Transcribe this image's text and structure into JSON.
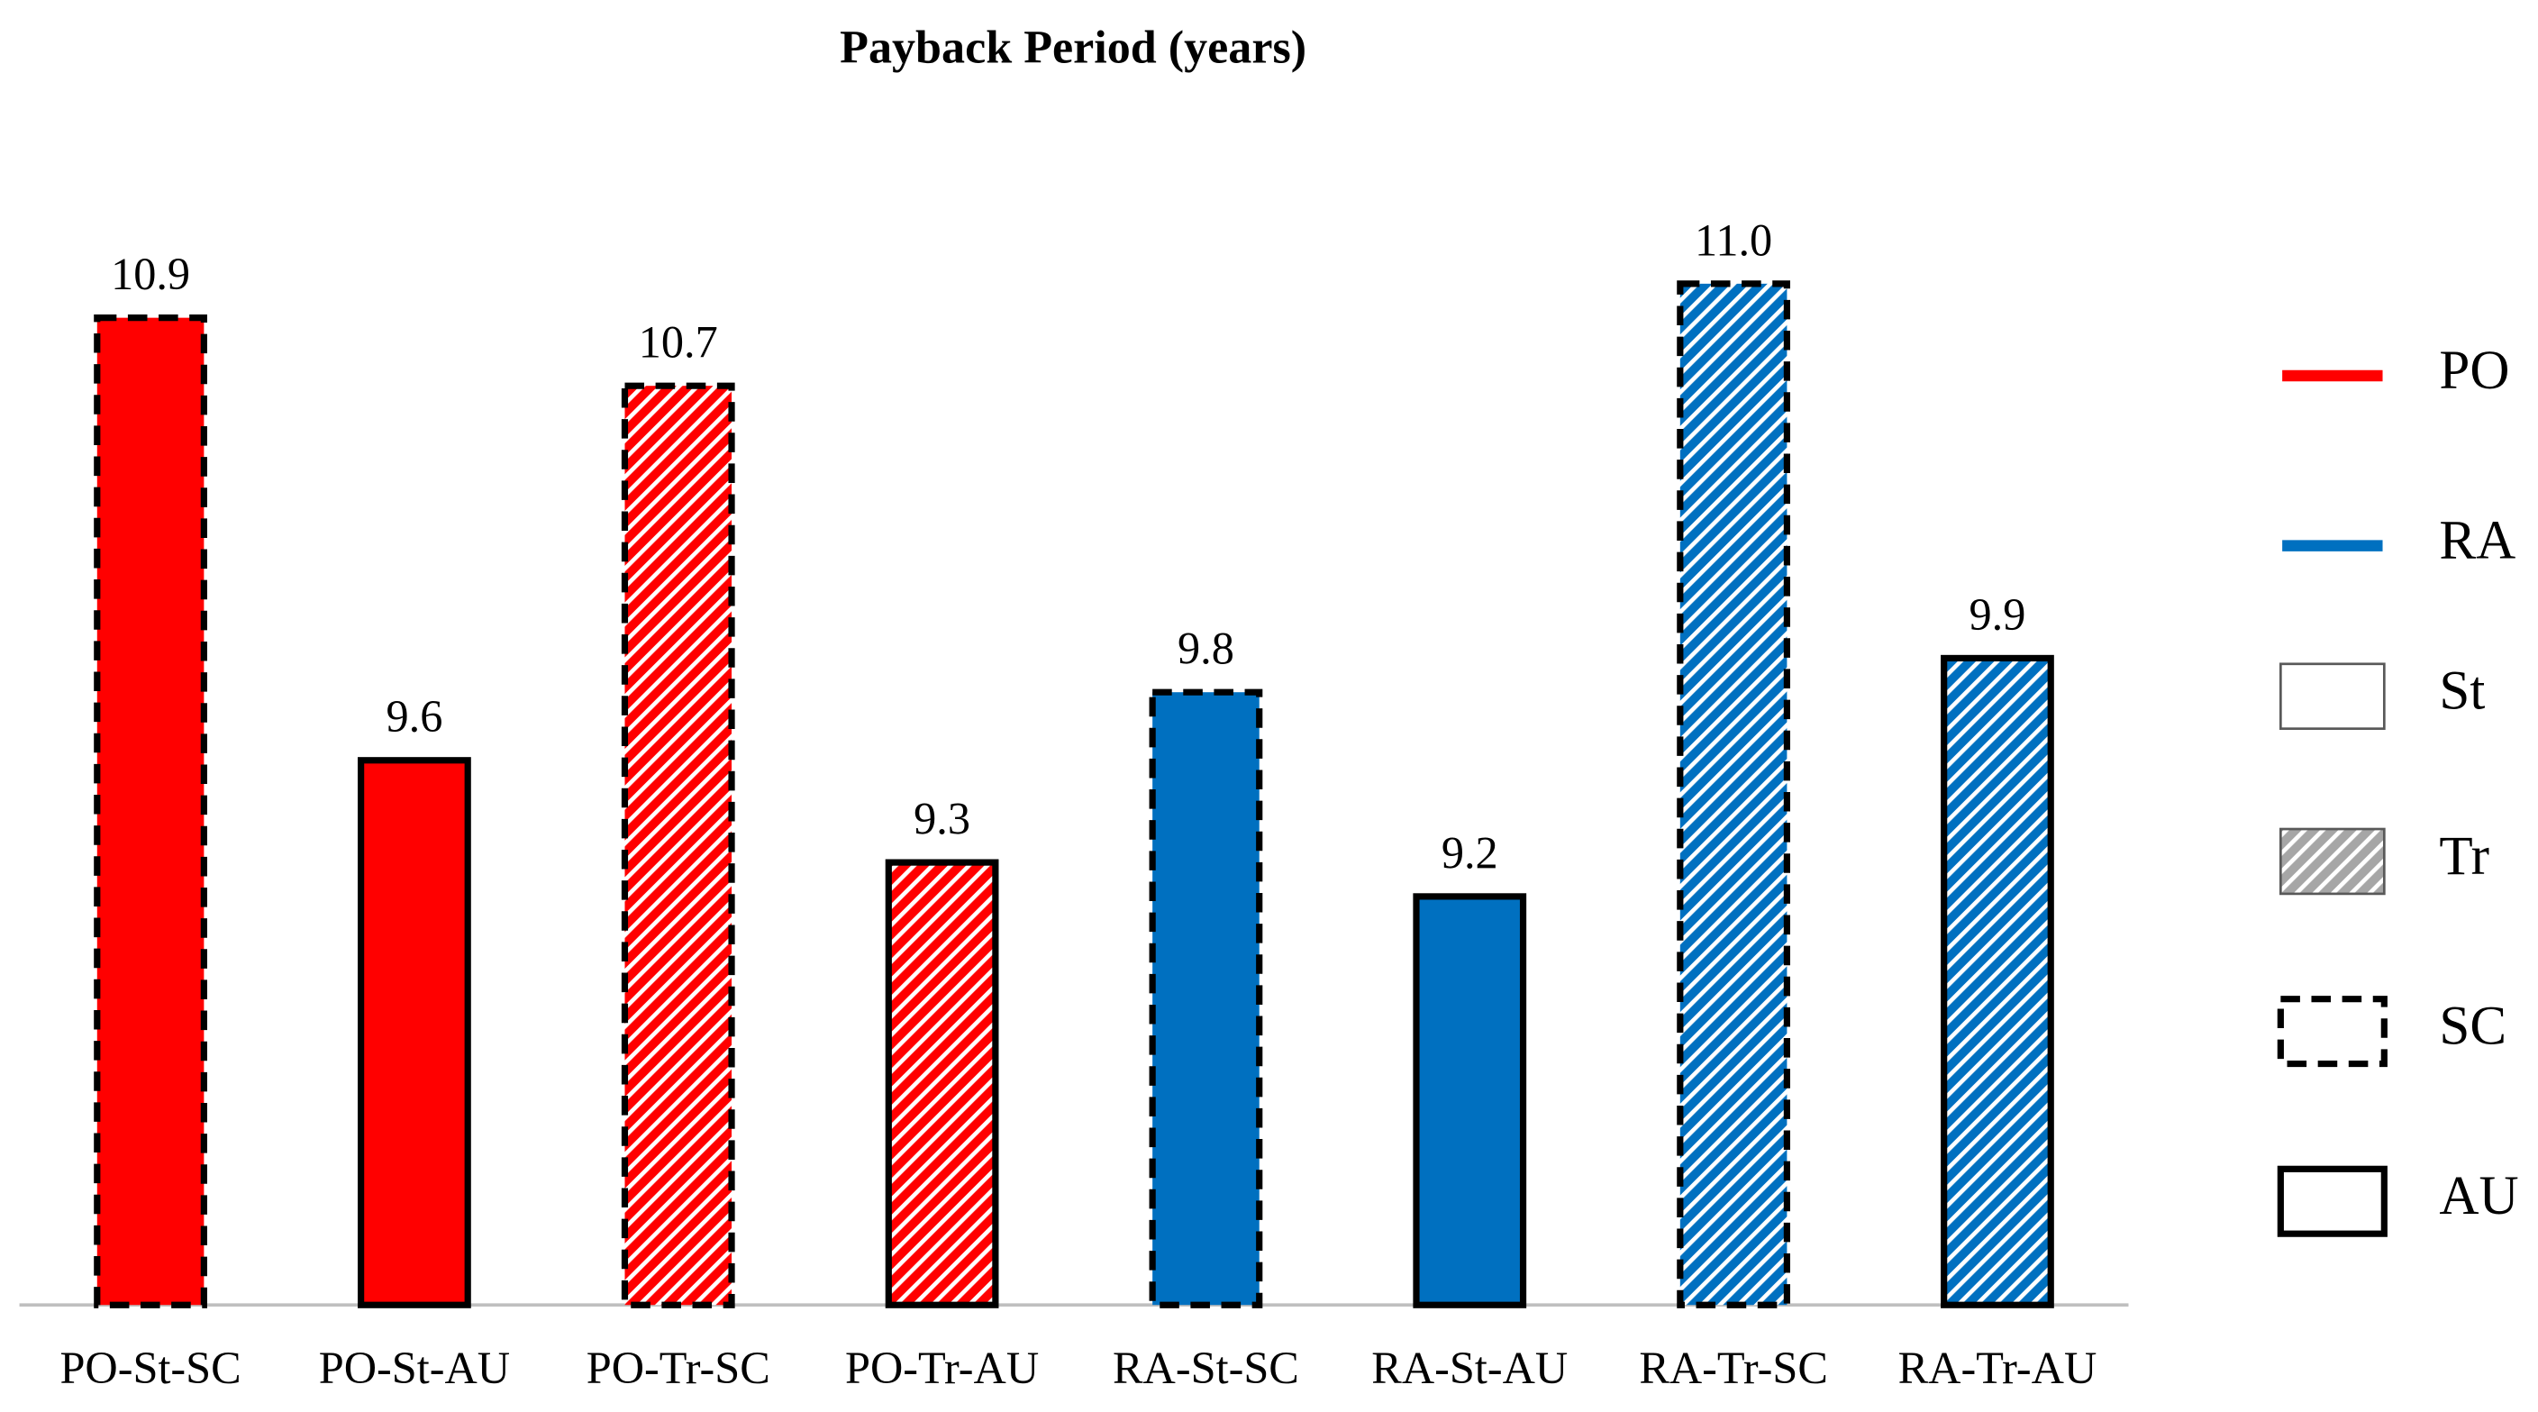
{
  "chart_data": {
    "type": "bar",
    "title": "Payback Period (years)",
    "categories": [
      "PO-St-SC",
      "PO-St-AU",
      "PO-Tr-SC",
      "PO-Tr-AU",
      "RA-St-SC",
      "RA-St-AU",
      "RA-Tr-SC",
      "RA-Tr-AU"
    ],
    "values": [
      10.9,
      9.6,
      10.7,
      9.3,
      9.8,
      9.2,
      11.0,
      9.9
    ],
    "value_labels": [
      "10.9",
      "9.6",
      "10.7",
      "9.3",
      "9.8",
      "9.2",
      "11.0",
      "9.9"
    ],
    "bar_colors": [
      "#ff0000",
      "#ff0000",
      "#ff0000",
      "#ff0000",
      "#0070c0",
      "#0070c0",
      "#0070c0",
      "#0070c0"
    ],
    "bar_hatched": [
      false,
      false,
      true,
      true,
      false,
      false,
      true,
      true
    ],
    "bar_borders": [
      "dashed",
      "solid",
      "dashed",
      "solid",
      "dashed",
      "solid",
      "dashed",
      "solid"
    ],
    "ylim": [
      8,
      11.5
    ],
    "legend": [
      {
        "label": "PO",
        "color": "#ff0000"
      },
      {
        "label": "RA",
        "color": "#0070c0"
      },
      {
        "label": "St",
        "fill": "plain"
      },
      {
        "label": "Tr",
        "fill": "hatch"
      },
      {
        "label": "SC",
        "border": "dashed"
      },
      {
        "label": "AU",
        "border": "solid"
      }
    ]
  }
}
